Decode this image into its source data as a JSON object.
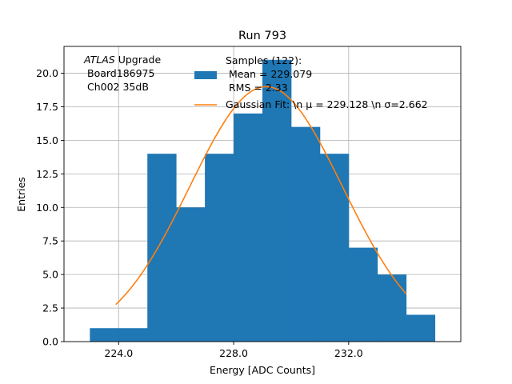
{
  "chart_data": {
    "type": "bar",
    "title": "Run 793",
    "xlabel": "Energy [ADC Counts]",
    "ylabel": "Entries",
    "xlim": [
      222.1,
      235.9
    ],
    "ylim": [
      0,
      22
    ],
    "grid": true,
    "x_ticks": [
      {
        "value": 224,
        "label": "224.0"
      },
      {
        "value": 228,
        "label": "228.0"
      },
      {
        "value": 232,
        "label": "232.0"
      }
    ],
    "y_ticks": [
      {
        "value": 0,
        "label": "0.0"
      },
      {
        "value": 2.5,
        "label": "2.5"
      },
      {
        "value": 5,
        "label": "5.0"
      },
      {
        "value": 7.5,
        "label": "7.5"
      },
      {
        "value": 10,
        "label": "10.0"
      },
      {
        "value": 12.5,
        "label": "12.5"
      },
      {
        "value": 15,
        "label": "15.0"
      },
      {
        "value": 17.5,
        "label": "17.5"
      },
      {
        "value": 20,
        "label": "20.0"
      }
    ],
    "histogram": {
      "bin_edges": [
        223.0,
        224.0,
        225.0,
        226.0,
        227.0,
        228.0,
        229.0,
        230.0,
        231.0,
        232.0,
        233.0,
        234.0,
        235.0
      ],
      "counts": [
        1,
        1,
        14,
        10,
        14,
        17,
        21,
        16,
        14,
        7,
        5,
        2
      ],
      "color": "#1f77b4"
    },
    "fit": {
      "type": "gaussian",
      "mu": 229.128,
      "sigma": 2.662,
      "amplitude": 19.0,
      "x_range": [
        223.9,
        234.0
      ],
      "color": "#ff7f0e"
    },
    "annotation": {
      "italic_word": "ATLAS",
      "word": " Upgrade",
      "line2": "Board186975",
      "line3": "Ch002 35dB"
    },
    "legend": {
      "placement": "upper center",
      "hist_label_lines": [
        "Samples (122):",
        "Mean = 229.079",
        "RMS = 2.33"
      ],
      "fit_label": "Gaussian Fit: \\n μ = 229.128 \\n σ=2.662"
    }
  }
}
